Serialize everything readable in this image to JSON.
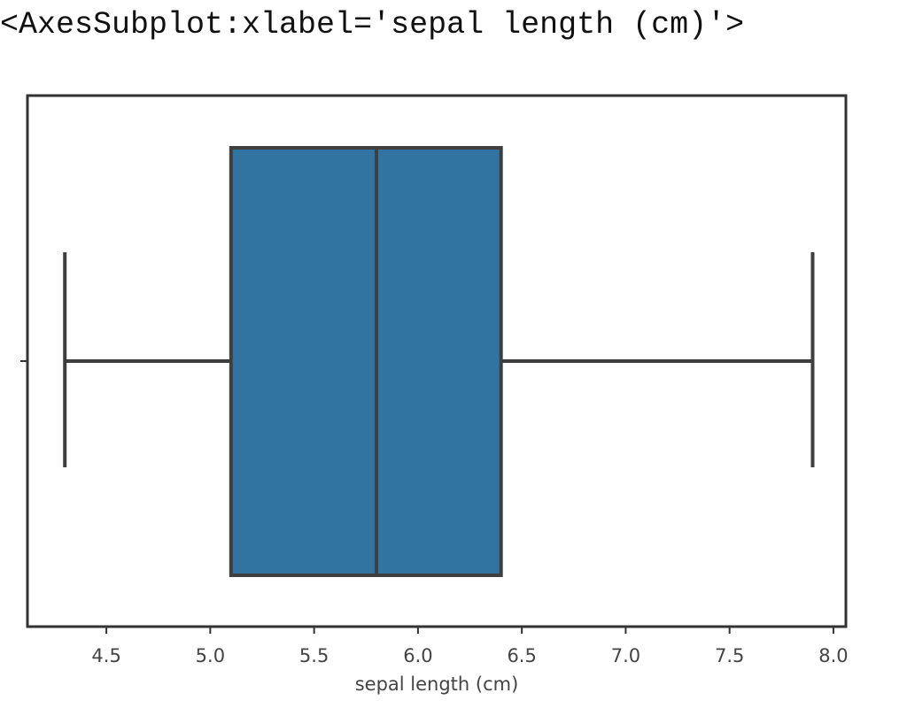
{
  "output_repr": "<AxesSubplot:xlabel='sepal length (cm)'>",
  "chart_data": {
    "type": "boxplot",
    "title": "",
    "xlabel": "sepal length (cm)",
    "ylabel": "",
    "xlim": [
      4.12,
      8.06
    ],
    "xticks": [
      4.5,
      5.0,
      5.5,
      6.0,
      6.5,
      7.0,
      7.5,
      8.0
    ],
    "xtick_labels": [
      "4.5",
      "5.0",
      "5.5",
      "6.0",
      "6.5",
      "7.0",
      "7.5",
      "8.0"
    ],
    "box": {
      "whisker_low": 4.3,
      "q1": 5.1,
      "median": 5.8,
      "q3": 6.4,
      "whisker_high": 7.9
    },
    "colors": {
      "box_fill": "#3274a1",
      "line": "#3f3f3f",
      "axes_frame": "#333333"
    },
    "grid": false
  }
}
